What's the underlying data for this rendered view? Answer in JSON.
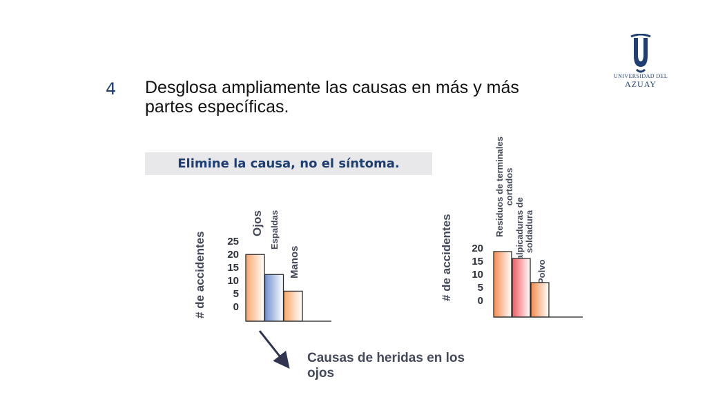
{
  "step_number": "4",
  "heading": "Desglosa ampliamente las causas en más y más partes específicas.",
  "banner": "Elimine la causa, no el síntoma.",
  "logo": {
    "line1": "UNIVERSIDAD DEL",
    "line2": "AZUAY",
    "brand_color": "#1f3f73"
  },
  "caption": "Causas de heridas en los ojos",
  "arrow_icon": "arrow-down-right-icon",
  "chart_data": [
    {
      "type": "bar",
      "categories": [
        "Ojos",
        "Espaldas",
        "Manos"
      ],
      "values": [
        20,
        14,
        9
      ],
      "ylabel": "# de accidentes",
      "yticks": [
        "25",
        "20",
        "15",
        "10",
        "5",
        "0"
      ],
      "ylim": [
        0,
        25
      ],
      "colors": [
        "#f7a66a",
        "#6e8fcf",
        "#f7a66a"
      ]
    },
    {
      "type": "bar",
      "categories": [
        "Residuos de terminales cortados",
        "Salpicaduras de soldadura",
        "Polvo"
      ],
      "values": [
        19,
        17,
        10
      ],
      "ylabel": "# de accidentes",
      "yticks": [
        "20",
        "15",
        "10",
        "5",
        "0"
      ],
      "ylim": [
        0,
        20
      ],
      "colors": [
        "#f48a4e",
        "#ef5a5f",
        "#f48a4e"
      ]
    }
  ]
}
